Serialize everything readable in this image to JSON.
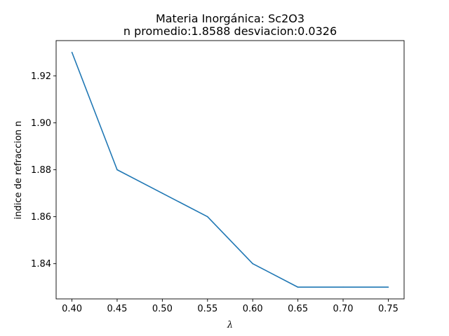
{
  "chart_data": {
    "type": "line",
    "title": "Materia Inorgánica: Sc2O3",
    "subtitle": "n promedio:1.8588 desviacion:0.0326",
    "xlabel": "λ",
    "ylabel": "indice de refraccion n",
    "x": [
      0.4,
      0.45,
      0.5,
      0.55,
      0.6,
      0.65,
      0.7,
      0.75
    ],
    "series": [
      {
        "values": [
          1.93,
          1.88,
          1.87,
          1.86,
          1.84,
          1.83,
          1.83,
          1.83
        ],
        "color": "#1f77b4"
      }
    ],
    "xlim": [
      0.3825,
      0.7675
    ],
    "ylim": [
      1.825,
      1.935
    ],
    "xticks": [
      "0.40",
      "0.45",
      "0.50",
      "0.55",
      "0.60",
      "0.65",
      "0.70",
      "0.75"
    ],
    "yticks": [
      "1.84",
      "1.86",
      "1.88",
      "1.90",
      "1.92"
    ],
    "grid": false,
    "legend": "none"
  }
}
